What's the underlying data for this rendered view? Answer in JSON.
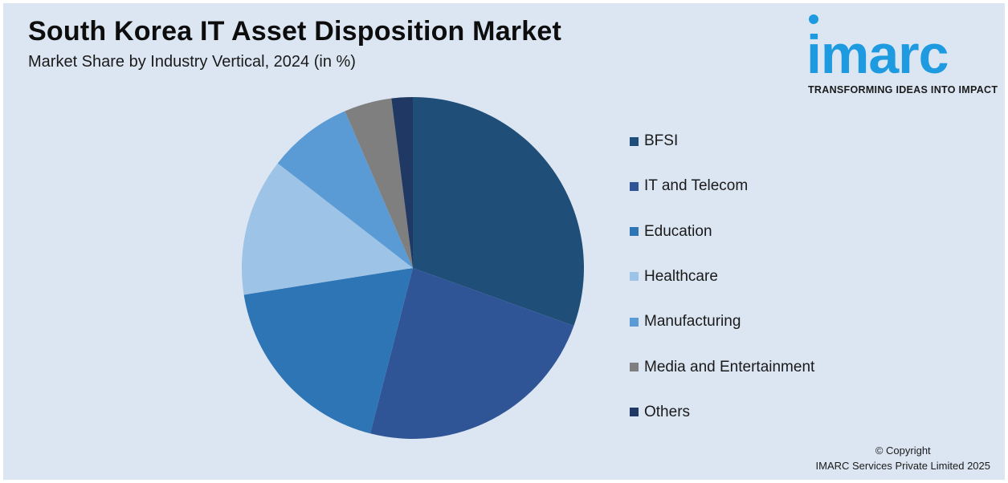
{
  "header": {
    "title": "South Korea IT Asset Disposition Market",
    "subtitle": "Market Share by Industry Vertical, 2024 (in %)"
  },
  "logo": {
    "wordmark": "imarc",
    "tagline": "TRANSFORMING IDEAS INTO IMPACT",
    "color": "#1e9be0"
  },
  "chart_data": {
    "type": "pie",
    "title": "South Korea IT Asset Disposition Market",
    "subtitle": "Market Share by Industry Vertical, 2024 (in %)",
    "legend_position": "right",
    "slices": [
      {
        "label": "BFSI",
        "value": 30.5,
        "color": "#1f4e79"
      },
      {
        "label": "IT and Telecom",
        "value": 23.5,
        "color": "#2f5597"
      },
      {
        "label": "Education",
        "value": 18.5,
        "color": "#2e75b6"
      },
      {
        "label": "Healthcare",
        "value": 13.0,
        "color": "#9dc3e6"
      },
      {
        "label": "Manufacturing",
        "value": 8.0,
        "color": "#5b9bd5"
      },
      {
        "label": "Media and Entertainment",
        "value": 4.5,
        "color": "#7f7f7f"
      },
      {
        "label": "Others",
        "value": 2.0,
        "color": "#203864"
      }
    ]
  },
  "footer": {
    "copyright_line1": "© Copyright",
    "copyright_line2": "IMARC Services Private Limited 2025"
  }
}
